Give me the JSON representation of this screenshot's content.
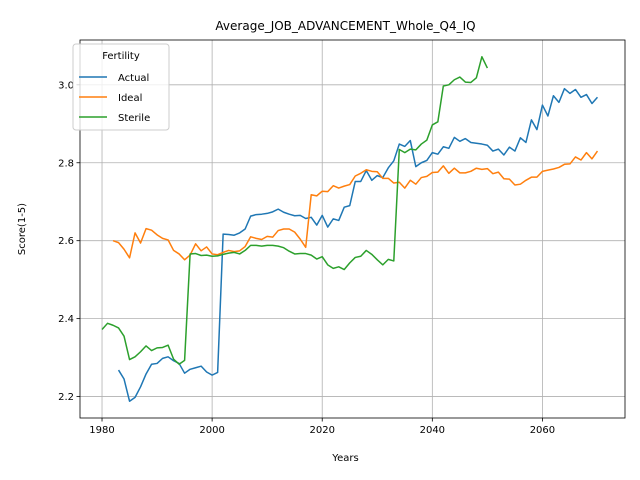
{
  "chart_data": {
    "type": "line",
    "title": "Average_JOB_ADVANCEMENT_Whole_Q4_IQ",
    "xlabel": "Years",
    "ylabel": "Score(1-5)",
    "xlim": [
      1976,
      2075
    ],
    "ylim": [
      2.145,
      3.115
    ],
    "xticks": [
      1980,
      2000,
      2020,
      2040,
      2060
    ],
    "yticks": [
      2.2,
      2.4,
      2.6,
      2.8,
      3.0
    ],
    "xtick_labels": [
      "1980",
      "2000",
      "2020",
      "2040",
      "2060"
    ],
    "ytick_labels": [
      "2.2",
      "2.4",
      "2.6",
      "2.8",
      "3.0"
    ],
    "grid": true,
    "legend": {
      "title": "Fertility",
      "placement": "top-left"
    },
    "series": [
      {
        "name": "Actual",
        "color": "#1f77b4",
        "points": [
          [
            1983,
            2.268
          ],
          [
            1984,
            2.245
          ],
          [
            1985,
            2.188
          ],
          [
            1986,
            2.198
          ],
          [
            1987,
            2.225
          ],
          [
            1988,
            2.258
          ],
          [
            1989,
            2.283
          ],
          [
            1990,
            2.285
          ],
          [
            1991,
            2.298
          ],
          [
            1992,
            2.302
          ],
          [
            1993,
            2.292
          ],
          [
            1994,
            2.285
          ],
          [
            1995,
            2.26
          ],
          [
            1996,
            2.27
          ],
          [
            1997,
            2.274
          ],
          [
            1998,
            2.278
          ],
          [
            1999,
            2.263
          ],
          [
            2000,
            2.255
          ],
          [
            2001,
            2.262
          ],
          [
            2002,
            2.617
          ],
          [
            2003,
            2.616
          ],
          [
            2004,
            2.614
          ],
          [
            2005,
            2.62
          ],
          [
            2006,
            2.63
          ],
          [
            2007,
            2.663
          ],
          [
            2008,
            2.667
          ],
          [
            2009,
            2.668
          ],
          [
            2010,
            2.67
          ],
          [
            2011,
            2.674
          ],
          [
            2012,
            2.681
          ],
          [
            2013,
            2.673
          ],
          [
            2014,
            2.668
          ],
          [
            2015,
            2.664
          ],
          [
            2016,
            2.665
          ],
          [
            2017,
            2.657
          ],
          [
            2018,
            2.66
          ],
          [
            2019,
            2.64
          ],
          [
            2020,
            2.665
          ],
          [
            2021,
            2.635
          ],
          [
            2022,
            2.656
          ],
          [
            2023,
            2.652
          ],
          [
            2024,
            2.686
          ],
          [
            2025,
            2.69
          ],
          [
            2026,
            2.752
          ],
          [
            2027,
            2.752
          ],
          [
            2028,
            2.78
          ],
          [
            2029,
            2.755
          ],
          [
            2030,
            2.767
          ],
          [
            2031,
            2.762
          ],
          [
            2032,
            2.787
          ],
          [
            2033,
            2.805
          ],
          [
            2034,
            2.848
          ],
          [
            2035,
            2.842
          ],
          [
            2036,
            2.857
          ],
          [
            2037,
            2.79
          ],
          [
            2038,
            2.8
          ],
          [
            2039,
            2.806
          ],
          [
            2040,
            2.826
          ],
          [
            2041,
            2.822
          ],
          [
            2042,
            2.841
          ],
          [
            2043,
            2.837
          ],
          [
            2044,
            2.865
          ],
          [
            2045,
            2.855
          ],
          [
            2046,
            2.862
          ],
          [
            2047,
            2.852
          ],
          [
            2048,
            2.85
          ],
          [
            2049,
            2.848
          ],
          [
            2050,
            2.845
          ],
          [
            2051,
            2.83
          ],
          [
            2052,
            2.835
          ],
          [
            2053,
            2.82
          ],
          [
            2054,
            2.84
          ],
          [
            2055,
            2.83
          ],
          [
            2056,
            2.864
          ],
          [
            2057,
            2.852
          ],
          [
            2058,
            2.91
          ],
          [
            2059,
            2.885
          ],
          [
            2060,
            2.948
          ],
          [
            2061,
            2.92
          ],
          [
            2062,
            2.972
          ],
          [
            2063,
            2.955
          ],
          [
            2064,
            2.99
          ],
          [
            2065,
            2.978
          ],
          [
            2066,
            2.988
          ],
          [
            2067,
            2.968
          ],
          [
            2068,
            2.975
          ],
          [
            2069,
            2.952
          ],
          [
            2070,
            2.968
          ]
        ]
      },
      {
        "name": "Ideal",
        "color": "#ff7f0e",
        "points": [
          [
            1982,
            2.6
          ],
          [
            1983,
            2.595
          ],
          [
            1984,
            2.578
          ],
          [
            1985,
            2.556
          ],
          [
            1986,
            2.62
          ],
          [
            1987,
            2.594
          ],
          [
            1988,
            2.631
          ],
          [
            1989,
            2.627
          ],
          [
            1990,
            2.615
          ],
          [
            1991,
            2.606
          ],
          [
            1992,
            2.602
          ],
          [
            1993,
            2.575
          ],
          [
            1994,
            2.566
          ],
          [
            1995,
            2.551
          ],
          [
            1996,
            2.563
          ],
          [
            1997,
            2.592
          ],
          [
            1998,
            2.574
          ],
          [
            1999,
            2.584
          ],
          [
            2000,
            2.566
          ],
          [
            2001,
            2.564
          ],
          [
            2002,
            2.57
          ],
          [
            2003,
            2.575
          ],
          [
            2004,
            2.572
          ],
          [
            2005,
            2.574
          ],
          [
            2006,
            2.585
          ],
          [
            2007,
            2.61
          ],
          [
            2008,
            2.606
          ],
          [
            2009,
            2.603
          ],
          [
            2010,
            2.611
          ],
          [
            2011,
            2.609
          ],
          [
            2012,
            2.626
          ],
          [
            2013,
            2.63
          ],
          [
            2014,
            2.63
          ],
          [
            2015,
            2.622
          ],
          [
            2016,
            2.604
          ],
          [
            2017,
            2.583
          ],
          [
            2018,
            2.718
          ],
          [
            2019,
            2.715
          ],
          [
            2020,
            2.727
          ],
          [
            2021,
            2.726
          ],
          [
            2022,
            2.741
          ],
          [
            2023,
            2.735
          ],
          [
            2024,
            2.74
          ],
          [
            2025,
            2.744
          ],
          [
            2026,
            2.766
          ],
          [
            2027,
            2.773
          ],
          [
            2028,
            2.782
          ],
          [
            2029,
            2.778
          ],
          [
            2030,
            2.777
          ],
          [
            2031,
            2.76
          ],
          [
            2032,
            2.76
          ],
          [
            2033,
            2.748
          ],
          [
            2034,
            2.75
          ],
          [
            2035,
            2.735
          ],
          [
            2036,
            2.755
          ],
          [
            2037,
            2.745
          ],
          [
            2038,
            2.762
          ],
          [
            2039,
            2.765
          ],
          [
            2040,
            2.775
          ],
          [
            2041,
            2.776
          ],
          [
            2042,
            2.792
          ],
          [
            2043,
            2.773
          ],
          [
            2044,
            2.786
          ],
          [
            2045,
            2.774
          ],
          [
            2046,
            2.774
          ],
          [
            2047,
            2.778
          ],
          [
            2048,
            2.786
          ],
          [
            2049,
            2.783
          ],
          [
            2050,
            2.785
          ],
          [
            2051,
            2.772
          ],
          [
            2052,
            2.776
          ],
          [
            2053,
            2.759
          ],
          [
            2054,
            2.758
          ],
          [
            2055,
            2.743
          ],
          [
            2056,
            2.745
          ],
          [
            2057,
            2.755
          ],
          [
            2058,
            2.763
          ],
          [
            2059,
            2.763
          ],
          [
            2060,
            2.778
          ],
          [
            2061,
            2.781
          ],
          [
            2062,
            2.784
          ],
          [
            2063,
            2.788
          ],
          [
            2064,
            2.796
          ],
          [
            2065,
            2.797
          ],
          [
            2066,
            2.815
          ],
          [
            2067,
            2.807
          ],
          [
            2068,
            2.826
          ],
          [
            2069,
            2.81
          ],
          [
            2070,
            2.83
          ]
        ]
      },
      {
        "name": "Sterile",
        "color": "#2ca02c",
        "points": [
          [
            1980,
            2.372
          ],
          [
            1981,
            2.388
          ],
          [
            1982,
            2.383
          ],
          [
            1983,
            2.376
          ],
          [
            1984,
            2.355
          ],
          [
            1985,
            2.295
          ],
          [
            1986,
            2.302
          ],
          [
            1987,
            2.315
          ],
          [
            1988,
            2.33
          ],
          [
            1989,
            2.318
          ],
          [
            1990,
            2.325
          ],
          [
            1991,
            2.326
          ],
          [
            1992,
            2.332
          ],
          [
            1993,
            2.296
          ],
          [
            1994,
            2.283
          ],
          [
            1995,
            2.293
          ],
          [
            1996,
            2.566
          ],
          [
            1997,
            2.567
          ],
          [
            1998,
            2.562
          ],
          [
            1999,
            2.563
          ],
          [
            2000,
            2.56
          ],
          [
            2001,
            2.561
          ],
          [
            2002,
            2.565
          ],
          [
            2003,
            2.568
          ],
          [
            2004,
            2.57
          ],
          [
            2005,
            2.566
          ],
          [
            2006,
            2.575
          ],
          [
            2007,
            2.588
          ],
          [
            2008,
            2.588
          ],
          [
            2009,
            2.586
          ],
          [
            2010,
            2.588
          ],
          [
            2011,
            2.588
          ],
          [
            2012,
            2.586
          ],
          [
            2013,
            2.582
          ],
          [
            2014,
            2.573
          ],
          [
            2015,
            2.566
          ],
          [
            2016,
            2.567
          ],
          [
            2017,
            2.567
          ],
          [
            2018,
            2.563
          ],
          [
            2019,
            2.553
          ],
          [
            2020,
            2.559
          ],
          [
            2021,
            2.538
          ],
          [
            2022,
            2.529
          ],
          [
            2023,
            2.533
          ],
          [
            2024,
            2.526
          ],
          [
            2025,
            2.543
          ],
          [
            2026,
            2.557
          ],
          [
            2027,
            2.56
          ],
          [
            2028,
            2.575
          ],
          [
            2029,
            2.565
          ],
          [
            2030,
            2.551
          ],
          [
            2031,
            2.538
          ],
          [
            2032,
            2.552
          ],
          [
            2033,
            2.548
          ],
          [
            2034,
            2.834
          ],
          [
            2035,
            2.826
          ],
          [
            2036,
            2.835
          ],
          [
            2037,
            2.833
          ],
          [
            2038,
            2.848
          ],
          [
            2039,
            2.858
          ],
          [
            2040,
            2.897
          ],
          [
            2041,
            2.905
          ],
          [
            2042,
            2.997
          ],
          [
            2043,
            3.0
          ],
          [
            2044,
            3.013
          ],
          [
            2045,
            3.02
          ],
          [
            2046,
            3.007
          ],
          [
            2047,
            3.006
          ],
          [
            2048,
            3.018
          ],
          [
            2049,
            3.072
          ],
          [
            2050,
            3.043
          ]
        ]
      }
    ]
  }
}
